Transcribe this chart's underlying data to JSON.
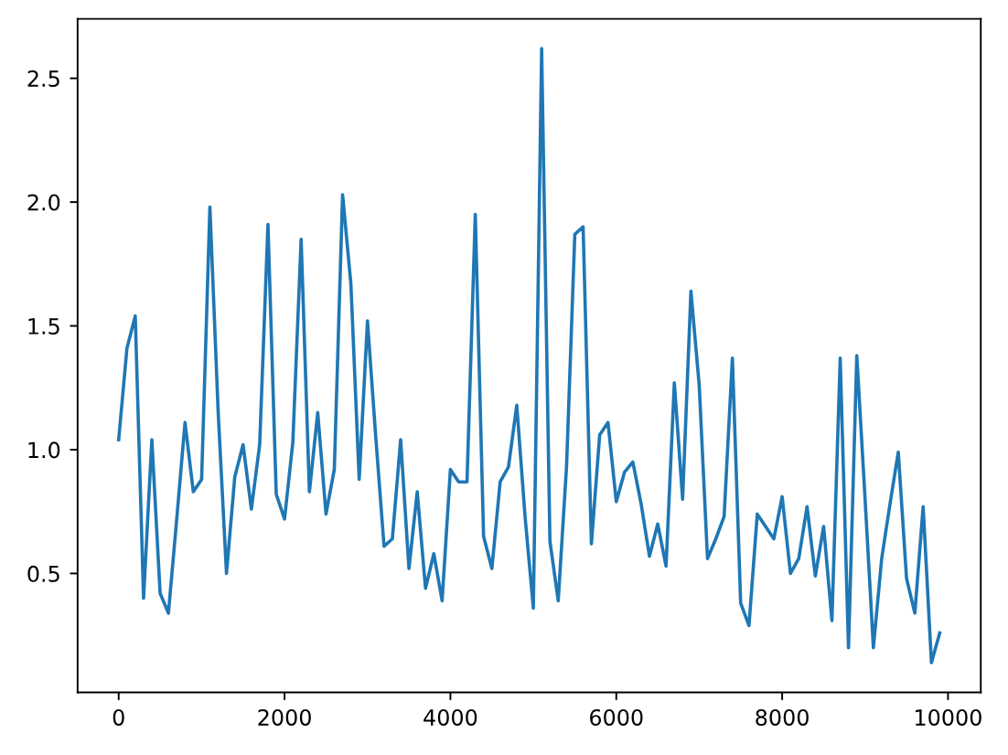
{
  "chart_data": {
    "type": "line",
    "x": [
      0,
      100,
      200,
      300,
      400,
      500,
      600,
      700,
      800,
      900,
      1000,
      1100,
      1200,
      1300,
      1400,
      1500,
      1600,
      1700,
      1800,
      1900,
      2000,
      2100,
      2200,
      2300,
      2400,
      2500,
      2600,
      2700,
      2800,
      2900,
      3000,
      3100,
      3200,
      3300,
      3400,
      3500,
      3600,
      3700,
      3800,
      3900,
      4000,
      4100,
      4200,
      4300,
      4400,
      4500,
      4600,
      4700,
      4800,
      4900,
      5000,
      5100,
      5200,
      5300,
      5400,
      5500,
      5600,
      5700,
      5800,
      5900,
      6000,
      6100,
      6200,
      6300,
      6400,
      6500,
      6600,
      6700,
      6800,
      6900,
      7000,
      7100,
      7200,
      7300,
      7400,
      7500,
      7600,
      7700,
      7800,
      7900,
      8000,
      8100,
      8200,
      8300,
      8400,
      8500,
      8600,
      8700,
      8800,
      8900,
      9000,
      9100,
      9200,
      9300,
      9400,
      9500,
      9600,
      9700,
      9800,
      9900
    ],
    "series": [
      {
        "color": "#1f77b4",
        "line_style": "solid",
        "values": [
          1.04,
          1.41,
          1.54,
          0.4,
          1.04,
          0.42,
          0.34,
          0.72,
          1.11,
          0.83,
          0.88,
          1.98,
          1.15,
          0.5,
          0.89,
          1.02,
          0.76,
          1.02,
          1.91,
          0.82,
          0.72,
          1.03,
          1.85,
          0.83,
          1.15,
          0.74,
          0.92,
          2.03,
          1.67,
          0.88,
          1.52,
          1.05,
          0.61,
          0.64,
          1.04,
          0.52,
          0.83,
          0.44,
          0.58,
          0.39,
          0.92,
          0.87,
          0.87,
          1.95,
          0.65,
          0.52,
          0.87,
          0.93,
          1.18,
          0.73,
          0.36,
          2.62,
          0.63,
          0.39,
          0.93,
          1.87,
          1.9,
          0.62,
          1.06,
          1.11,
          0.79,
          0.91,
          0.95,
          0.78,
          0.57,
          0.7,
          0.53,
          1.27,
          0.8,
          1.64,
          1.26,
          0.56,
          0.64,
          0.73,
          1.37,
          0.38,
          0.29,
          0.74,
          0.69,
          0.64,
          0.81,
          0.5,
          0.56,
          0.77,
          0.49,
          0.69,
          0.31,
          1.37,
          0.2,
          1.38,
          0.8,
          0.2,
          0.56,
          0.78,
          0.99,
          0.48,
          0.34,
          0.77,
          0.14,
          0.26
        ]
      }
    ],
    "xlim": [
      -495,
      10395
    ],
    "ylim": [
      0.02,
      2.74
    ],
    "xticks": [
      0,
      2000,
      4000,
      6000,
      8000,
      10000
    ],
    "yticks": [
      0.5,
      {
        "value": 1,
        "label": "1.0"
      },
      1.5,
      {
        "value": 2,
        "label": "2.0"
      },
      2.5
    ],
    "grid": false
  }
}
